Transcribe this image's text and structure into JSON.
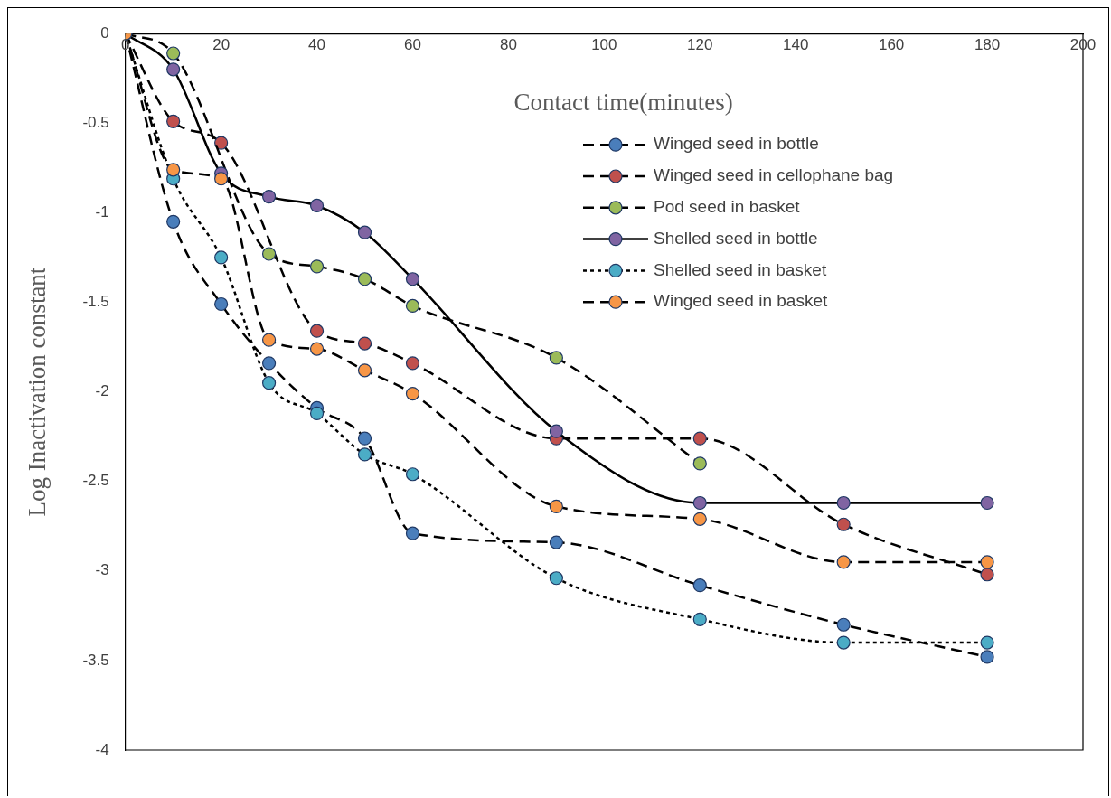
{
  "chart_data": {
    "type": "line",
    "xlabel": "Contact time(minutes)",
    "ylabel": "Log Inactivation constant",
    "x": [
      0,
      10,
      20,
      30,
      40,
      50,
      60,
      90,
      120,
      150,
      180
    ],
    "xlim": [
      0,
      200
    ],
    "xticks": [
      0,
      20,
      40,
      60,
      80,
      100,
      120,
      140,
      160,
      180,
      200
    ],
    "ylim": [
      -4,
      0
    ],
    "yticks": [
      -4,
      -3.5,
      -3,
      -2.5,
      -2,
      -1.5,
      -1,
      -0.5,
      0
    ],
    "grid": false,
    "legend": "top right",
    "marker": "circle",
    "series": [
      {
        "name": "Winged seed in bottle",
        "color": "#4a7ebb",
        "line_style": "dashed",
        "values": [
          0,
          -1.05,
          -1.51,
          -1.84,
          -2.09,
          -2.26,
          -2.79,
          -2.84,
          -3.08,
          -3.3,
          -3.48
        ]
      },
      {
        "name": "Winged seed in cellophane bag",
        "color": "#c0504d",
        "line_style": "dashed",
        "values": [
          0,
          -0.49,
          -0.61,
          null,
          -1.66,
          -1.73,
          -1.84,
          -2.26,
          -2.26,
          -2.74,
          -3.02
        ]
      },
      {
        "name": "Pod seed in basket",
        "color": "#9bbb59",
        "line_style": "dashed",
        "values": [
          0,
          -0.11,
          null,
          -1.23,
          -1.3,
          -1.37,
          -1.52,
          -1.81,
          -2.4,
          null,
          null
        ]
      },
      {
        "name": "Shelled seed in bottle",
        "color": "#8064a2",
        "line_style": "solid",
        "values": [
          0,
          -0.2,
          -0.78,
          -0.91,
          -0.96,
          -1.11,
          -1.37,
          -2.22,
          -2.62,
          -2.62,
          -2.62
        ]
      },
      {
        "name": "Shelled seed in basket",
        "color": "#4bacc6",
        "line_style": "dotted",
        "values": [
          0,
          -0.81,
          -1.25,
          -1.95,
          -2.12,
          -2.35,
          -2.46,
          -3.04,
          -3.27,
          -3.4,
          -3.4
        ]
      },
      {
        "name": "Winged seed in basket",
        "color": "#f79646",
        "line_style": "dashed",
        "values": [
          0,
          -0.76,
          -0.81,
          -1.71,
          -1.76,
          -1.88,
          -2.01,
          -2.64,
          -2.71,
          -2.95,
          -2.95
        ]
      }
    ]
  }
}
